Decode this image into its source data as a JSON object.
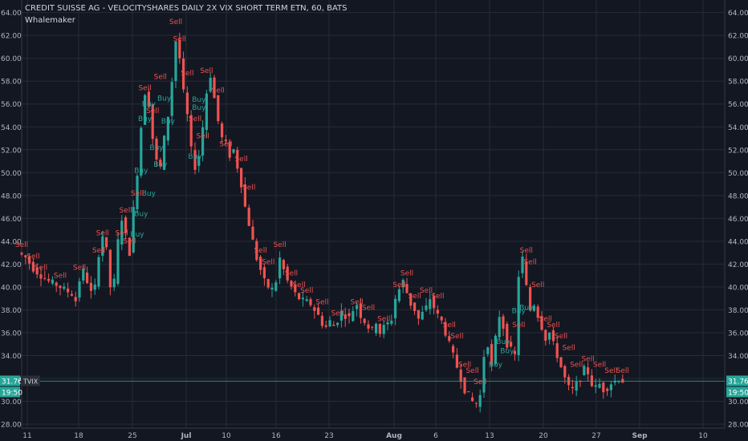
{
  "header": {
    "title": "CREDIT SUISSE AG - VELOCITYSHARES DAILY 2X VIX SHORT TERM ETN, 60, BATS",
    "indicator": "Whalemaker"
  },
  "colors": {
    "background": "#131722",
    "grid": "#262b36",
    "up": "#26a69a",
    "down": "#ef5350",
    "buy_label": "#26a69a",
    "sell_label": "#ef5350",
    "price_line": "#26a69a",
    "text": "#b2b5be"
  },
  "chart_data": {
    "type": "candlestick",
    "symbol": "TVIX",
    "ylim": [
      27.6,
      64.2
    ],
    "y_ticks": [
      "28.00",
      "30.00",
      "32.00",
      "34.00",
      "36.00",
      "38.00",
      "40.00",
      "42.00",
      "44.00",
      "46.00",
      "48.00",
      "50.00",
      "52.00",
      "54.00",
      "56.00",
      "58.00",
      "60.00",
      "62.00",
      "64.00"
    ],
    "x_ticks": [
      "11",
      "18",
      "25",
      "Jul",
      "10",
      "16",
      "23",
      "Aug",
      "6",
      "13",
      "20",
      "27",
      "Sep",
      "10"
    ],
    "last_price": "31.76",
    "last_time": "19:50",
    "price_path": [
      [
        0,
        43.0
      ],
      [
        2,
        42.6
      ],
      [
        4,
        41.6
      ],
      [
        6,
        41.0
      ],
      [
        8,
        40.5
      ],
      [
        10,
        40.2
      ],
      [
        12,
        39.8
      ],
      [
        14,
        39.4
      ],
      [
        15,
        38.8
      ],
      [
        16,
        40.6
      ],
      [
        17,
        41.4
      ],
      [
        18,
        40.5
      ],
      [
        19,
        39.5
      ],
      [
        20,
        40.0
      ],
      [
        21,
        42.9
      ],
      [
        22,
        44.5
      ],
      [
        23,
        43.2
      ],
      [
        24,
        40.0
      ],
      [
        25,
        40.5
      ],
      [
        26,
        44.0
      ],
      [
        27,
        46.0
      ],
      [
        28,
        44.5
      ],
      [
        29,
        43.0
      ],
      [
        30,
        46.8
      ],
      [
        31,
        50.0
      ],
      [
        32,
        54.0
      ],
      [
        33,
        57.0
      ],
      [
        34,
        56.0
      ],
      [
        35,
        53.0
      ],
      [
        36,
        51.0
      ],
      [
        37,
        50.5
      ],
      [
        38,
        53.0
      ],
      [
        39,
        55.0
      ],
      [
        40,
        58.0
      ],
      [
        41,
        61.5
      ],
      [
        42,
        60.0
      ],
      [
        43,
        57.0
      ],
      [
        44,
        55.0
      ],
      [
        45,
        52.0
      ],
      [
        46,
        50.5
      ],
      [
        47,
        51.5
      ],
      [
        48,
        54.0
      ],
      [
        49,
        57.0
      ],
      [
        50,
        58.5
      ],
      [
        51,
        56.5
      ],
      [
        52,
        54.5
      ],
      [
        53,
        53.0
      ],
      [
        54,
        52.5
      ],
      [
        55,
        51.5
      ],
      [
        56,
        52.0
      ],
      [
        57,
        50.5
      ],
      [
        58,
        49.0
      ],
      [
        59,
        47.0
      ],
      [
        60,
        45.5
      ],
      [
        61,
        44.0
      ],
      [
        62,
        42.5
      ],
      [
        63,
        41.5
      ],
      [
        64,
        40.5
      ],
      [
        65,
        40.0
      ],
      [
        66,
        39.8
      ],
      [
        67,
        40.5
      ],
      [
        68,
        42.5
      ],
      [
        69,
        41.5
      ],
      [
        70,
        40.5
      ],
      [
        71,
        40.0
      ],
      [
        72,
        39.4
      ],
      [
        73,
        39.0
      ],
      [
        74,
        38.8
      ],
      [
        75,
        38.7
      ],
      [
        76,
        38.5
      ],
      [
        77,
        38.0
      ],
      [
        78,
        37.5
      ],
      [
        79,
        36.8
      ],
      [
        80,
        36.5
      ],
      [
        81,
        37.0
      ],
      [
        82,
        36.6
      ],
      [
        83,
        37.1
      ],
      [
        84,
        37.8
      ],
      [
        85,
        37.5
      ],
      [
        86,
        37.3
      ],
      [
        87,
        38.0
      ],
      [
        88,
        38.5
      ],
      [
        89,
        37.5
      ],
      [
        90,
        37.0
      ],
      [
        91,
        36.5
      ],
      [
        92,
        36.2
      ],
      [
        93,
        37.0
      ],
      [
        94,
        36.0
      ],
      [
        95,
        36.5
      ],
      [
        96,
        36.8
      ],
      [
        97,
        37.2
      ],
      [
        98,
        39.0
      ],
      [
        99,
        39.8
      ],
      [
        100,
        40.5
      ],
      [
        101,
        39.5
      ],
      [
        102,
        38.5
      ],
      [
        103,
        38.0
      ],
      [
        104,
        37.2
      ],
      [
        105,
        37.7
      ],
      [
        106,
        38.2
      ],
      [
        107,
        39.0
      ],
      [
        108,
        38.2
      ],
      [
        109,
        37.5
      ],
      [
        110,
        37.0
      ],
      [
        111,
        36.0
      ],
      [
        112,
        35.0
      ],
      [
        113,
        34.0
      ],
      [
        114,
        33.0
      ],
      [
        115,
        32.0
      ],
      [
        116,
        31.0
      ],
      [
        117,
        30.5
      ],
      [
        118,
        30.0
      ],
      [
        119,
        29.8
      ],
      [
        120,
        30.5
      ],
      [
        121,
        34.0
      ],
      [
        122,
        35.0
      ],
      [
        123,
        33.0
      ],
      [
        124,
        35.5
      ],
      [
        125,
        37.5
      ],
      [
        126,
        36.5
      ],
      [
        127,
        35.0
      ],
      [
        128,
        34.5
      ],
      [
        129,
        34.0
      ],
      [
        130,
        41.0
      ],
      [
        131,
        42.5
      ],
      [
        132,
        40.0
      ],
      [
        133,
        38.0
      ],
      [
        134,
        38.5
      ],
      [
        135,
        37.5
      ],
      [
        136,
        36.5
      ],
      [
        137,
        35.5
      ],
      [
        138,
        36.0
      ],
      [
        139,
        35.0
      ],
      [
        140,
        34.0
      ],
      [
        141,
        33.0
      ],
      [
        142,
        32.0
      ],
      [
        143,
        31.2
      ],
      [
        144,
        31.0
      ],
      [
        145,
        31.5
      ],
      [
        146,
        32.0
      ],
      [
        147,
        32.8
      ],
      [
        148,
        32.5
      ],
      [
        149,
        31.5
      ],
      [
        150,
        31.2
      ],
      [
        151,
        31.5
      ],
      [
        152,
        31.0
      ],
      [
        153,
        31.2
      ],
      [
        154,
        31.6
      ],
      [
        155,
        31.8
      ],
      [
        156,
        32.0
      ],
      [
        157,
        31.76
      ]
    ],
    "buy_signals": [
      [
        33,
        55.8
      ],
      [
        32,
        54.5
      ],
      [
        31,
        50.0
      ],
      [
        33,
        48.0
      ],
      [
        31,
        46.2
      ],
      [
        30,
        44.4
      ],
      [
        37,
        56.3
      ],
      [
        38,
        54.3
      ],
      [
        35,
        52.0
      ],
      [
        36,
        50.5
      ],
      [
        45,
        51.2
      ],
      [
        46,
        56.2
      ],
      [
        46,
        55.5
      ],
      [
        129,
        37.7
      ],
      [
        125,
        35.0
      ],
      [
        123,
        33.0
      ],
      [
        126,
        34.2
      ],
      [
        131,
        38.0
      ]
    ],
    "sell_signals": [
      [
        0,
        43.5
      ],
      [
        3,
        42.5
      ],
      [
        5,
        41.5
      ],
      [
        10,
        40.8
      ],
      [
        15,
        41.5
      ],
      [
        20,
        43.0
      ],
      [
        21,
        44.5
      ],
      [
        26,
        44.5
      ],
      [
        27,
        46.5
      ],
      [
        28,
        43.8
      ],
      [
        30,
        48.0
      ],
      [
        32,
        57.2
      ],
      [
        34,
        55.2
      ],
      [
        36,
        58.2
      ],
      [
        40,
        63.0
      ],
      [
        41,
        61.5
      ],
      [
        43,
        58.5
      ],
      [
        45,
        54.5
      ],
      [
        47,
        53.0
      ],
      [
        48,
        58.7
      ],
      [
        51,
        57.0
      ],
      [
        53,
        52.3
      ],
      [
        57,
        51.0
      ],
      [
        59,
        48.5
      ],
      [
        62,
        43.0
      ],
      [
        64,
        42.0
      ],
      [
        67,
        43.5
      ],
      [
        70,
        41.0
      ],
      [
        72,
        40.0
      ],
      [
        74,
        39.5
      ],
      [
        78,
        38.5
      ],
      [
        82,
        37.5
      ],
      [
        87,
        38.5
      ],
      [
        90,
        38.0
      ],
      [
        94,
        37.0
      ],
      [
        98,
        40.0
      ],
      [
        100,
        41.0
      ],
      [
        102,
        39.0
      ],
      [
        105,
        39.5
      ],
      [
        108,
        39.0
      ],
      [
        111,
        36.5
      ],
      [
        113,
        35.5
      ],
      [
        115,
        33.0
      ],
      [
        117,
        32.5
      ],
      [
        119,
        31.5
      ],
      [
        129,
        36.5
      ],
      [
        131,
        43.0
      ],
      [
        132,
        42.0
      ],
      [
        134,
        40.0
      ],
      [
        136,
        37.0
      ],
      [
        138,
        36.5
      ],
      [
        140,
        35.5
      ],
      [
        142,
        34.5
      ],
      [
        144,
        33.0
      ],
      [
        147,
        33.5
      ],
      [
        150,
        33.0
      ],
      [
        153,
        32.5
      ],
      [
        156,
        32.5
      ]
    ],
    "buy_text": "Buy",
    "sell_text": "Sell"
  }
}
